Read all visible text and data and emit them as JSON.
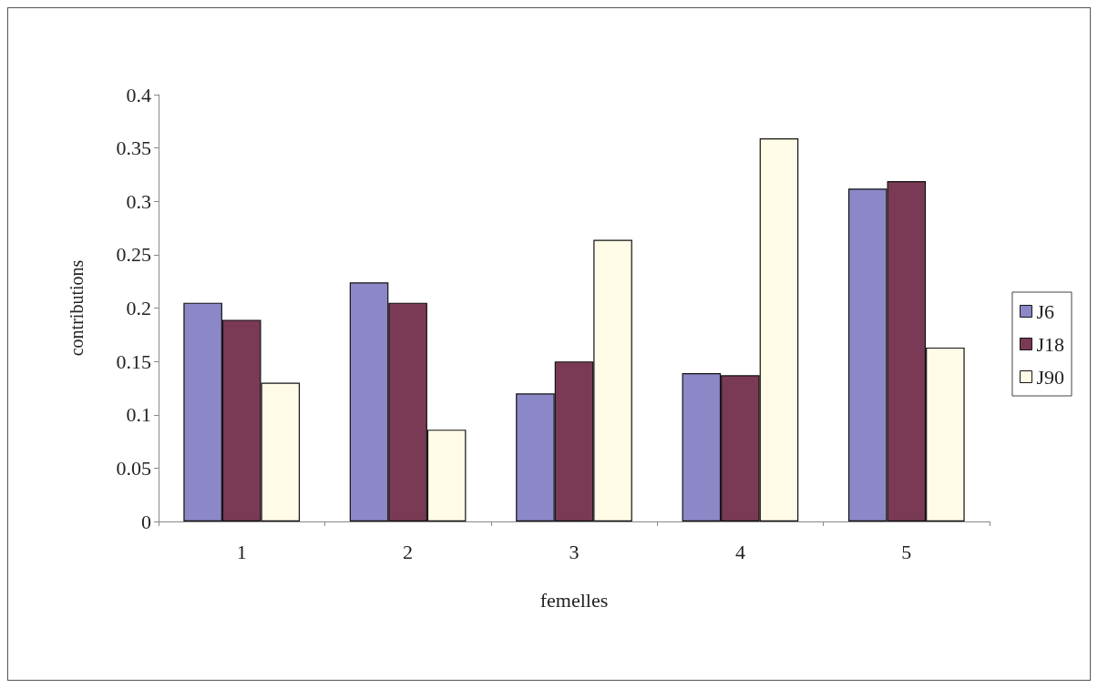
{
  "chart_data": {
    "type": "bar",
    "xlabel": "femelles",
    "ylabel": "contributions",
    "categories": [
      "1",
      "2",
      "3",
      "4",
      "5"
    ],
    "series": [
      {
        "name": "J6",
        "color": "#8c88c8",
        "values": [
          0.205,
          0.224,
          0.12,
          0.139,
          0.312
        ]
      },
      {
        "name": "J18",
        "color": "#7a3a55",
        "values": [
          0.189,
          0.205,
          0.15,
          0.137,
          0.319
        ]
      },
      {
        "name": "J90",
        "color": "#fffbe6",
        "values": [
          0.13,
          0.086,
          0.264,
          0.359,
          0.163
        ]
      }
    ],
    "ylim": [
      0,
      0.4
    ],
    "yticks": [
      0,
      0.05,
      0.1,
      0.15,
      0.2,
      0.25,
      0.3,
      0.35,
      0.4
    ],
    "grid": false,
    "legend": "right"
  }
}
